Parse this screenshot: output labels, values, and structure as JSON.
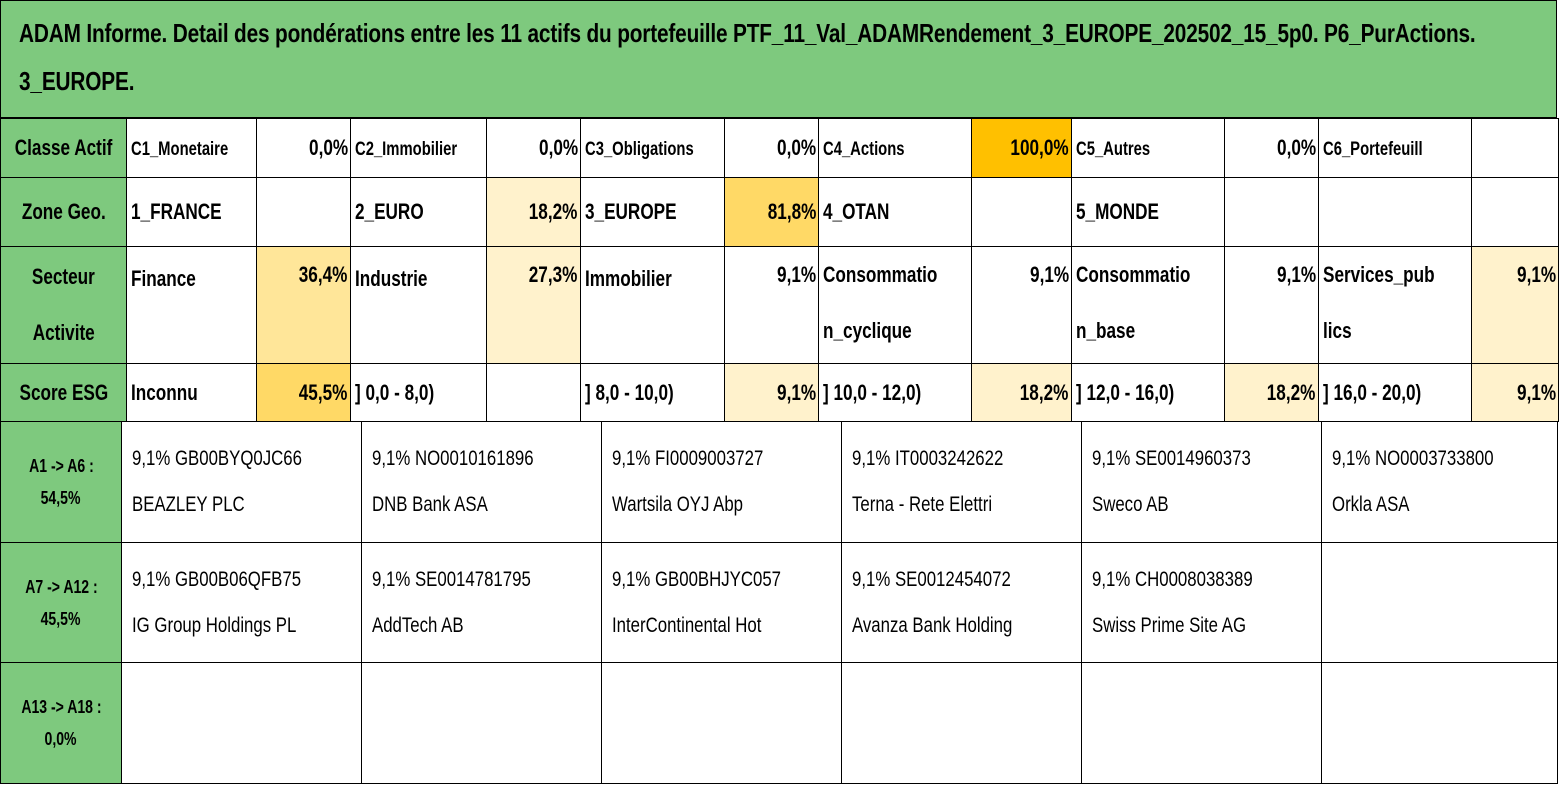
{
  "title": "ADAM Informe. Detail des pondérations entre les 11 actifs du portefeuille PTF_11_Val_ADAMRendement_3_EUROPE_202502_15_5p0. P6_PurActions. 3_EUROPE.",
  "classe_actif": {
    "header": "Classe Actif",
    "items": [
      {
        "label": "C1_Monetaire",
        "value": "0,0%"
      },
      {
        "label": "C2_Immobilier",
        "value": "0,0%"
      },
      {
        "label": "C3_Obligations",
        "value": "0,0%"
      },
      {
        "label": "C4_Actions",
        "value": "100,0%"
      },
      {
        "label": "C5_Autres",
        "value": "0,0%"
      },
      {
        "label": "C6_Portefeuill",
        "value": ""
      }
    ]
  },
  "zone_geo": {
    "header": "Zone Geo.",
    "items": [
      {
        "label": "1_FRANCE",
        "value": ""
      },
      {
        "label": "2_EURO",
        "value": "18,2%"
      },
      {
        "label": "3_EUROPE",
        "value": "81,8%"
      },
      {
        "label": "4_OTAN",
        "value": ""
      },
      {
        "label": "5_MONDE",
        "value": ""
      },
      {
        "label": "",
        "value": ""
      }
    ]
  },
  "secteur": {
    "header_line1": "Secteur",
    "header_line2": "Activite",
    "items": [
      {
        "label": "Finance",
        "value": "36,4%"
      },
      {
        "label": "Industrie",
        "value": "27,3%"
      },
      {
        "label": "Immobilier",
        "value": "9,1%"
      },
      {
        "label": "Consommation_cyclique",
        "value": "9,1%"
      },
      {
        "label": "Consommation_base",
        "value": "9,1%"
      },
      {
        "label": "Services_publics",
        "value": "9,1%"
      }
    ]
  },
  "score_esg": {
    "header": "Score ESG",
    "items": [
      {
        "label": "Inconnu",
        "value": "45,5%"
      },
      {
        "label": "] 0,0 - 8,0)",
        "value": ""
      },
      {
        "label": "] 8,0 - 10,0)",
        "value": "9,1%"
      },
      {
        "label": "] 10,0 - 12,0)",
        "value": "18,2%"
      },
      {
        "label": "] 12,0 - 16,0)",
        "value": "18,2%"
      },
      {
        "label": "] 16,0 - 20,0)",
        "value": "9,1%"
      }
    ]
  },
  "asset_rows": [
    {
      "range": "A1 -> A6 :",
      "total": "54,5%",
      "assets": [
        {
          "weight_isin": "9,1% GB00BYQ0JC66",
          "name": "BEAZLEY PLC"
        },
        {
          "weight_isin": "9,1% NO0010161896",
          "name": "DNB Bank ASA"
        },
        {
          "weight_isin": "9,1% FI0009003727",
          "name": "Wartsila OYJ Abp"
        },
        {
          "weight_isin": "9,1% IT0003242622",
          "name": "Terna - Rete Elettri"
        },
        {
          "weight_isin": "9,1% SE0014960373",
          "name": "Sweco AB"
        },
        {
          "weight_isin": "9,1% NO0003733800",
          "name": "Orkla ASA"
        }
      ]
    },
    {
      "range": "A7 -> A12 :",
      "total": "45,5%",
      "assets": [
        {
          "weight_isin": "9,1% GB00B06QFB75",
          "name": "IG Group Holdings PL"
        },
        {
          "weight_isin": "9,1% SE0014781795",
          "name": "AddTech AB"
        },
        {
          "weight_isin": "9,1% GB00BHJYC057",
          "name": "InterContinental Hot"
        },
        {
          "weight_isin": "9,1% SE0012454072",
          "name": "Avanza Bank Holding"
        },
        {
          "weight_isin": "9,1% CH0008038389",
          "name": "Swiss Prime Site AG"
        },
        {
          "weight_isin": "",
          "name": ""
        }
      ]
    },
    {
      "range": "A13 -> A18 :",
      "total": "0,0%",
      "assets": [
        {
          "weight_isin": "",
          "name": ""
        },
        {
          "weight_isin": "",
          "name": ""
        },
        {
          "weight_isin": "",
          "name": ""
        },
        {
          "weight_isin": "",
          "name": ""
        },
        {
          "weight_isin": "",
          "name": ""
        },
        {
          "weight_isin": "",
          "name": ""
        }
      ]
    }
  ],
  "colors": {
    "header_green": "#7ec97e",
    "highlight_gold": "#ffc000",
    "highlight_amber": "#ffd966",
    "highlight_light": "#ffe699",
    "highlight_pale": "#fff2cc"
  }
}
